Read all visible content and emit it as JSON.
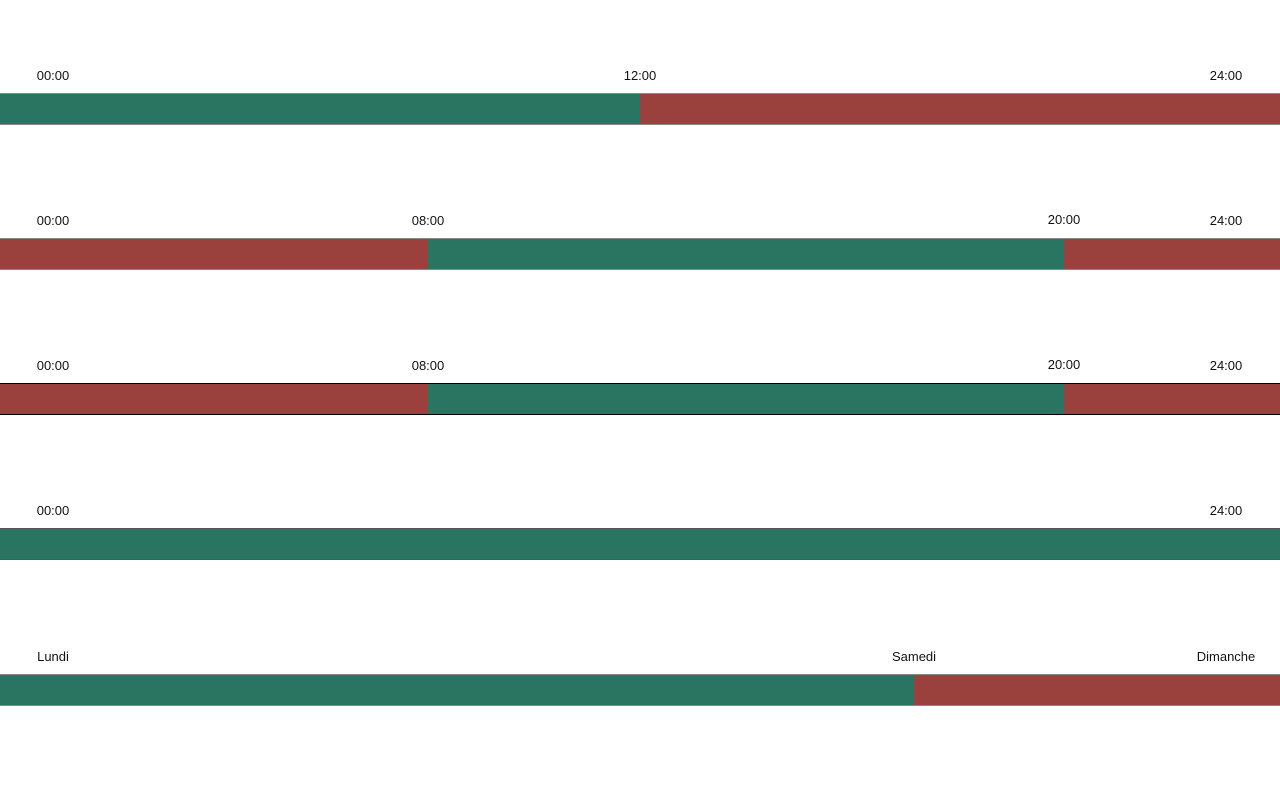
{
  "rows": [
    {
      "labels": [
        "00:00",
        "12:00",
        "24:00"
      ]
    },
    {
      "labels": [
        "00:00",
        "08:00",
        "20:00",
        "24:00"
      ]
    },
    {
      "labels": [
        "00:00",
        "08:00",
        "20:00",
        "24:00"
      ]
    },
    {
      "labels": [
        "00:00",
        "24:00"
      ]
    },
    {
      "labels": [
        "Lundi",
        "Samedi",
        "Dimanche"
      ]
    }
  ]
}
